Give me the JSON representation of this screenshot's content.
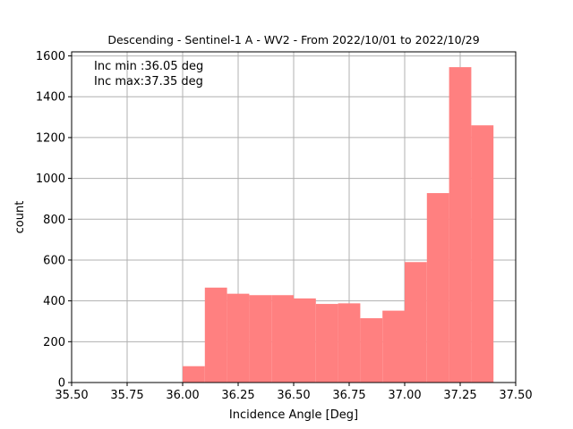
{
  "chart_data": {
    "type": "bar",
    "title": "Descending - Sentinel-1 A - WV2 - From 2022/10/01 to 2022/10/29",
    "xlabel": "Incidence Angle [Deg]",
    "ylabel": "count",
    "xlim": [
      35.5,
      37.5
    ],
    "ylim": [
      0,
      1620
    ],
    "xticks": [
      "35.50",
      "35.75",
      "36.00",
      "36.25",
      "36.50",
      "36.75",
      "37.00",
      "37.25",
      "37.50"
    ],
    "yticks": [
      "0",
      "200",
      "400",
      "600",
      "800",
      "1000",
      "1200",
      "1400",
      "1600"
    ],
    "grid": true,
    "bar_color": "#ff8080",
    "annotations": [
      "Inc min :36.05 deg",
      "Inc max:37.35 deg"
    ],
    "bins": [
      {
        "x0": 36.0,
        "x1": 36.1,
        "value": 80
      },
      {
        "x0": 36.1,
        "x1": 36.2,
        "value": 465
      },
      {
        "x0": 36.2,
        "x1": 36.3,
        "value": 435
      },
      {
        "x0": 36.3,
        "x1": 36.4,
        "value": 428
      },
      {
        "x0": 36.4,
        "x1": 36.5,
        "value": 428
      },
      {
        "x0": 36.5,
        "x1": 36.6,
        "value": 412
      },
      {
        "x0": 36.6,
        "x1": 36.7,
        "value": 385
      },
      {
        "x0": 36.7,
        "x1": 36.8,
        "value": 388
      },
      {
        "x0": 36.8,
        "x1": 36.9,
        "value": 315
      },
      {
        "x0": 36.9,
        "x1": 37.0,
        "value": 352
      },
      {
        "x0": 37.0,
        "x1": 37.1,
        "value": 590
      },
      {
        "x0": 37.1,
        "x1": 37.2,
        "value": 928
      },
      {
        "x0": 37.2,
        "x1": 37.3,
        "value": 1545
      },
      {
        "x0": 37.3,
        "x1": 37.4,
        "value": 1260
      }
    ]
  }
}
